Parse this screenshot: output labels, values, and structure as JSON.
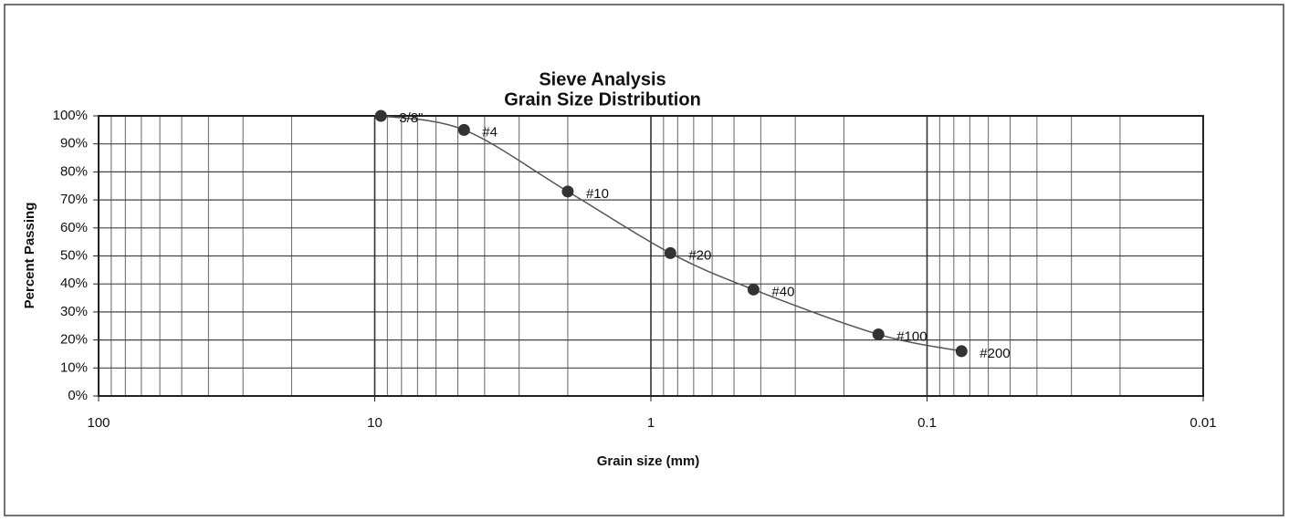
{
  "chart_data": {
    "type": "line",
    "title": "Sieve Analysis",
    "subtitle": "Grain Size Distribution",
    "x_label": "Grain size (mm)",
    "y_label": "Percent Passing",
    "x": [
      9.5,
      4.75,
      2.0,
      0.85,
      0.425,
      0.15,
      0.075
    ],
    "series": [
      {
        "color": "#555555",
        "values": [
          100,
          95,
          73,
          51,
          38,
          22,
          16
        ]
      }
    ],
    "point_labels": [
      "3/8\"",
      "#4",
      "#10",
      "#20",
      "#40",
      "#100",
      "#200"
    ],
    "xlim": [
      100,
      0.01
    ],
    "xticks": [
      100,
      10,
      1,
      0.1,
      0.01
    ],
    "x_log": true,
    "minor_grid": true,
    "ylim": [
      0,
      100
    ],
    "yticks": [
      {
        "value": 0,
        "label": "0%"
      },
      {
        "value": 10,
        "label": "10%"
      },
      {
        "value": 20,
        "label": "20%"
      },
      {
        "value": 30,
        "label": "30%"
      },
      {
        "value": 40,
        "label": "40%"
      },
      {
        "value": 50,
        "label": "50%"
      },
      {
        "value": 60,
        "label": "60%"
      },
      {
        "value": 70,
        "label": "70%"
      },
      {
        "value": 80,
        "label": "80%"
      },
      {
        "value": 90,
        "label": "90%"
      },
      {
        "value": 100,
        "label": "100%"
      }
    ],
    "grid": true
  }
}
